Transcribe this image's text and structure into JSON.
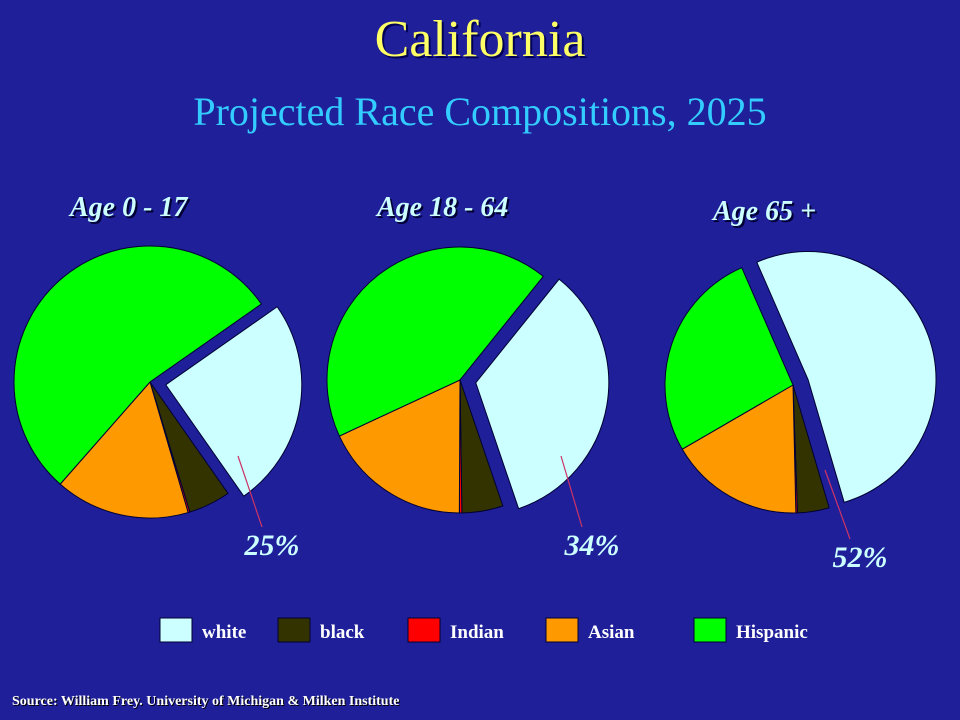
{
  "title": "California",
  "subtitle": "Projected Race Compositions, 2025",
  "source": "Source: William Frey. University of Michigan & Milken Institute",
  "chart_data": [
    {
      "type": "pie",
      "label": "Age 0 - 17",
      "categories": [
        "white",
        "black",
        "Indian",
        "Asian",
        "Hispanic"
      ],
      "values": [
        25,
        5,
        0.2,
        16,
        53.8
      ],
      "exploded": "white",
      "annotation": "25%"
    },
    {
      "type": "pie",
      "label": "Age 18 - 64",
      "categories": [
        "white",
        "black",
        "Indian",
        "Asian",
        "Hispanic"
      ],
      "values": [
        34,
        5,
        0.3,
        18,
        42.7
      ],
      "exploded": "white",
      "annotation": "34%"
    },
    {
      "type": "pie",
      "label": "Age 65 +",
      "categories": [
        "white",
        "black",
        "Indian",
        "Asian",
        "Hispanic"
      ],
      "values": [
        52,
        4,
        0.2,
        17,
        26.8
      ],
      "exploded": "white",
      "annotation": "52%"
    }
  ],
  "legend": {
    "placement": "bottom",
    "items": [
      {
        "label": "white",
        "color": "#ccffff"
      },
      {
        "label": "black",
        "color": "#333300"
      },
      {
        "label": "Indian",
        "color": "#ff0000"
      },
      {
        "label": "Asian",
        "color": "#ff9900"
      },
      {
        "label": "Hispanic",
        "color": "#00ff00"
      }
    ]
  },
  "colors": {
    "background": "#1f1f99",
    "title": "#ffff66",
    "subtitle": "#33ccff",
    "label": "#ccffff",
    "leader_line": "#cc3366"
  }
}
